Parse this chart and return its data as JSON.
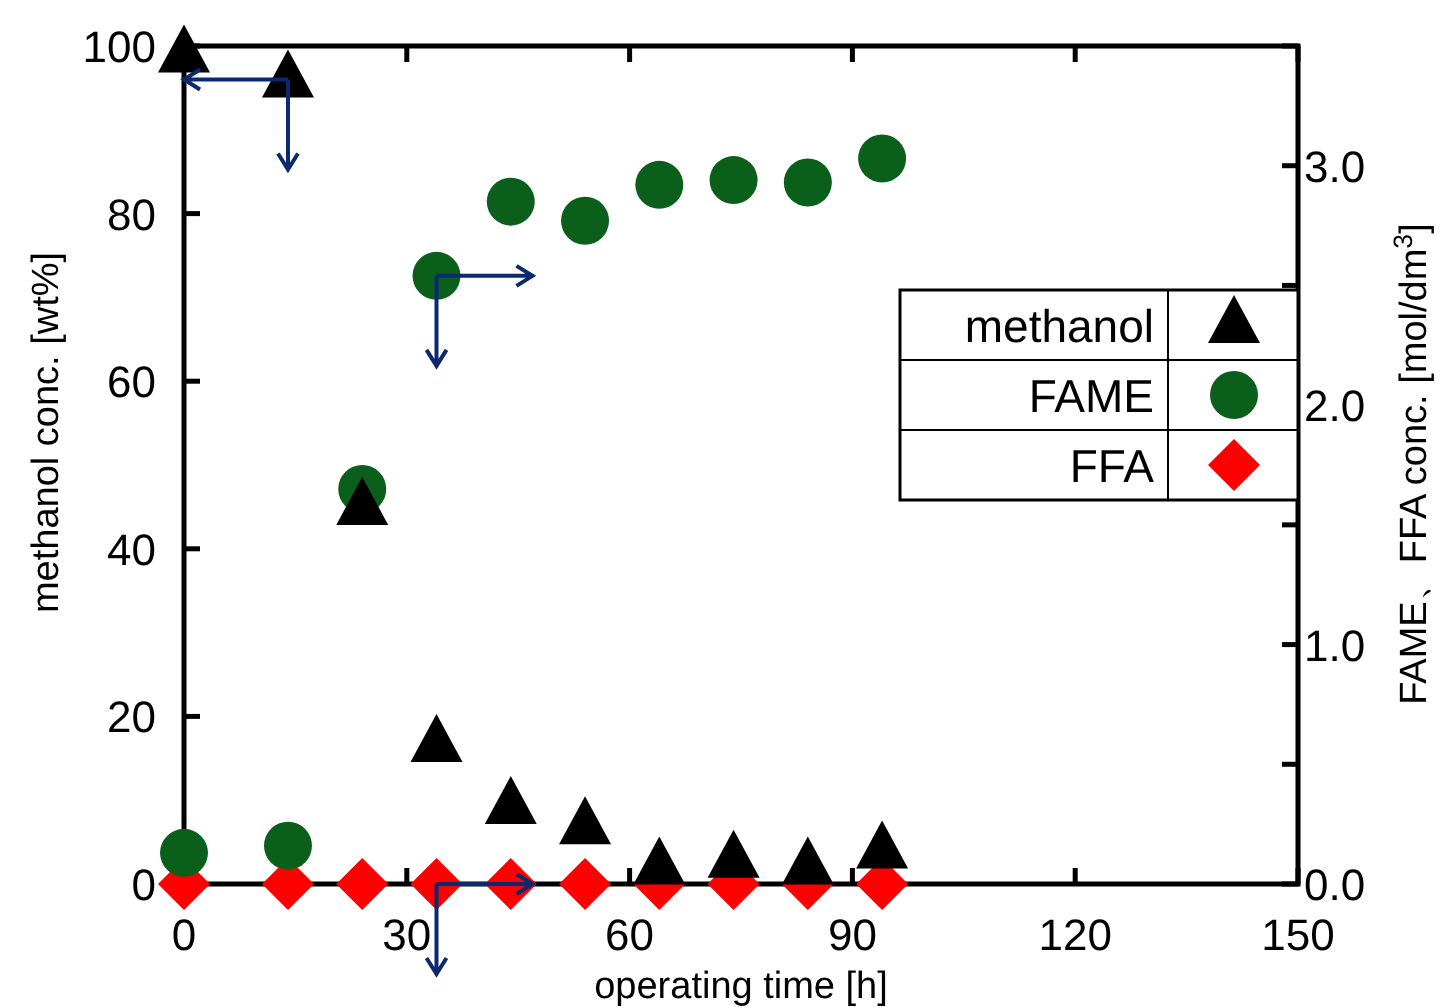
{
  "chart_data": {
    "type": "scatter",
    "xlabel": "operating time [h]",
    "ylabel": "methanol conc. [wt%]",
    "y2label": "FAME、FFA conc. [mol/dm$^{3}$]",
    "x": [
      0,
      14,
      24,
      34,
      44,
      54,
      64,
      74,
      84,
      94
    ],
    "series": [
      {
        "name": "methanol",
        "color": "#000000",
        "marker": "triangle",
        "values": [
          99,
          96,
          45,
          16.7,
          9.3,
          6.9,
          2.1,
          2.9,
          2.1,
          4.0
        ]
      },
      {
        "name": "FAME",
        "color": "#0a5f1a",
        "marker": "circle",
        "axis": "y2",
        "values": [
          0.13,
          0.16,
          1.65,
          2.54,
          2.85,
          2.77,
          2.92,
          2.94,
          2.93,
          3.03
        ]
      },
      {
        "name": "FFA",
        "color": "#ff0000",
        "marker": "diamond",
        "axis": "y2",
        "values": [
          0,
          0,
          0,
          0,
          0,
          0,
          0,
          0,
          0,
          0
        ]
      }
    ],
    "xlim": [
      0,
      150
    ],
    "xticks": [
      0,
      30,
      60,
      90,
      120,
      150
    ],
    "ylim": [
      0,
      100
    ],
    "yticks": [
      0,
      20,
      40,
      60,
      80,
      100
    ],
    "y2lim": [
      0,
      3.5
    ],
    "y2ticks": [
      {
        "value": 0,
        "label": "0.0"
      },
      {
        "value": 0.5,
        "label": null
      },
      {
        "value": 1,
        "label": "1.0"
      },
      {
        "value": 1.5,
        "label": null
      },
      {
        "value": 2,
        "label": "2.0"
      },
      {
        "value": 2.5,
        "label": null
      },
      {
        "value": 3,
        "label": "3.0"
      },
      {
        "value": 3.5,
        "label": null
      }
    ],
    "grid": false,
    "legend": "right"
  }
}
